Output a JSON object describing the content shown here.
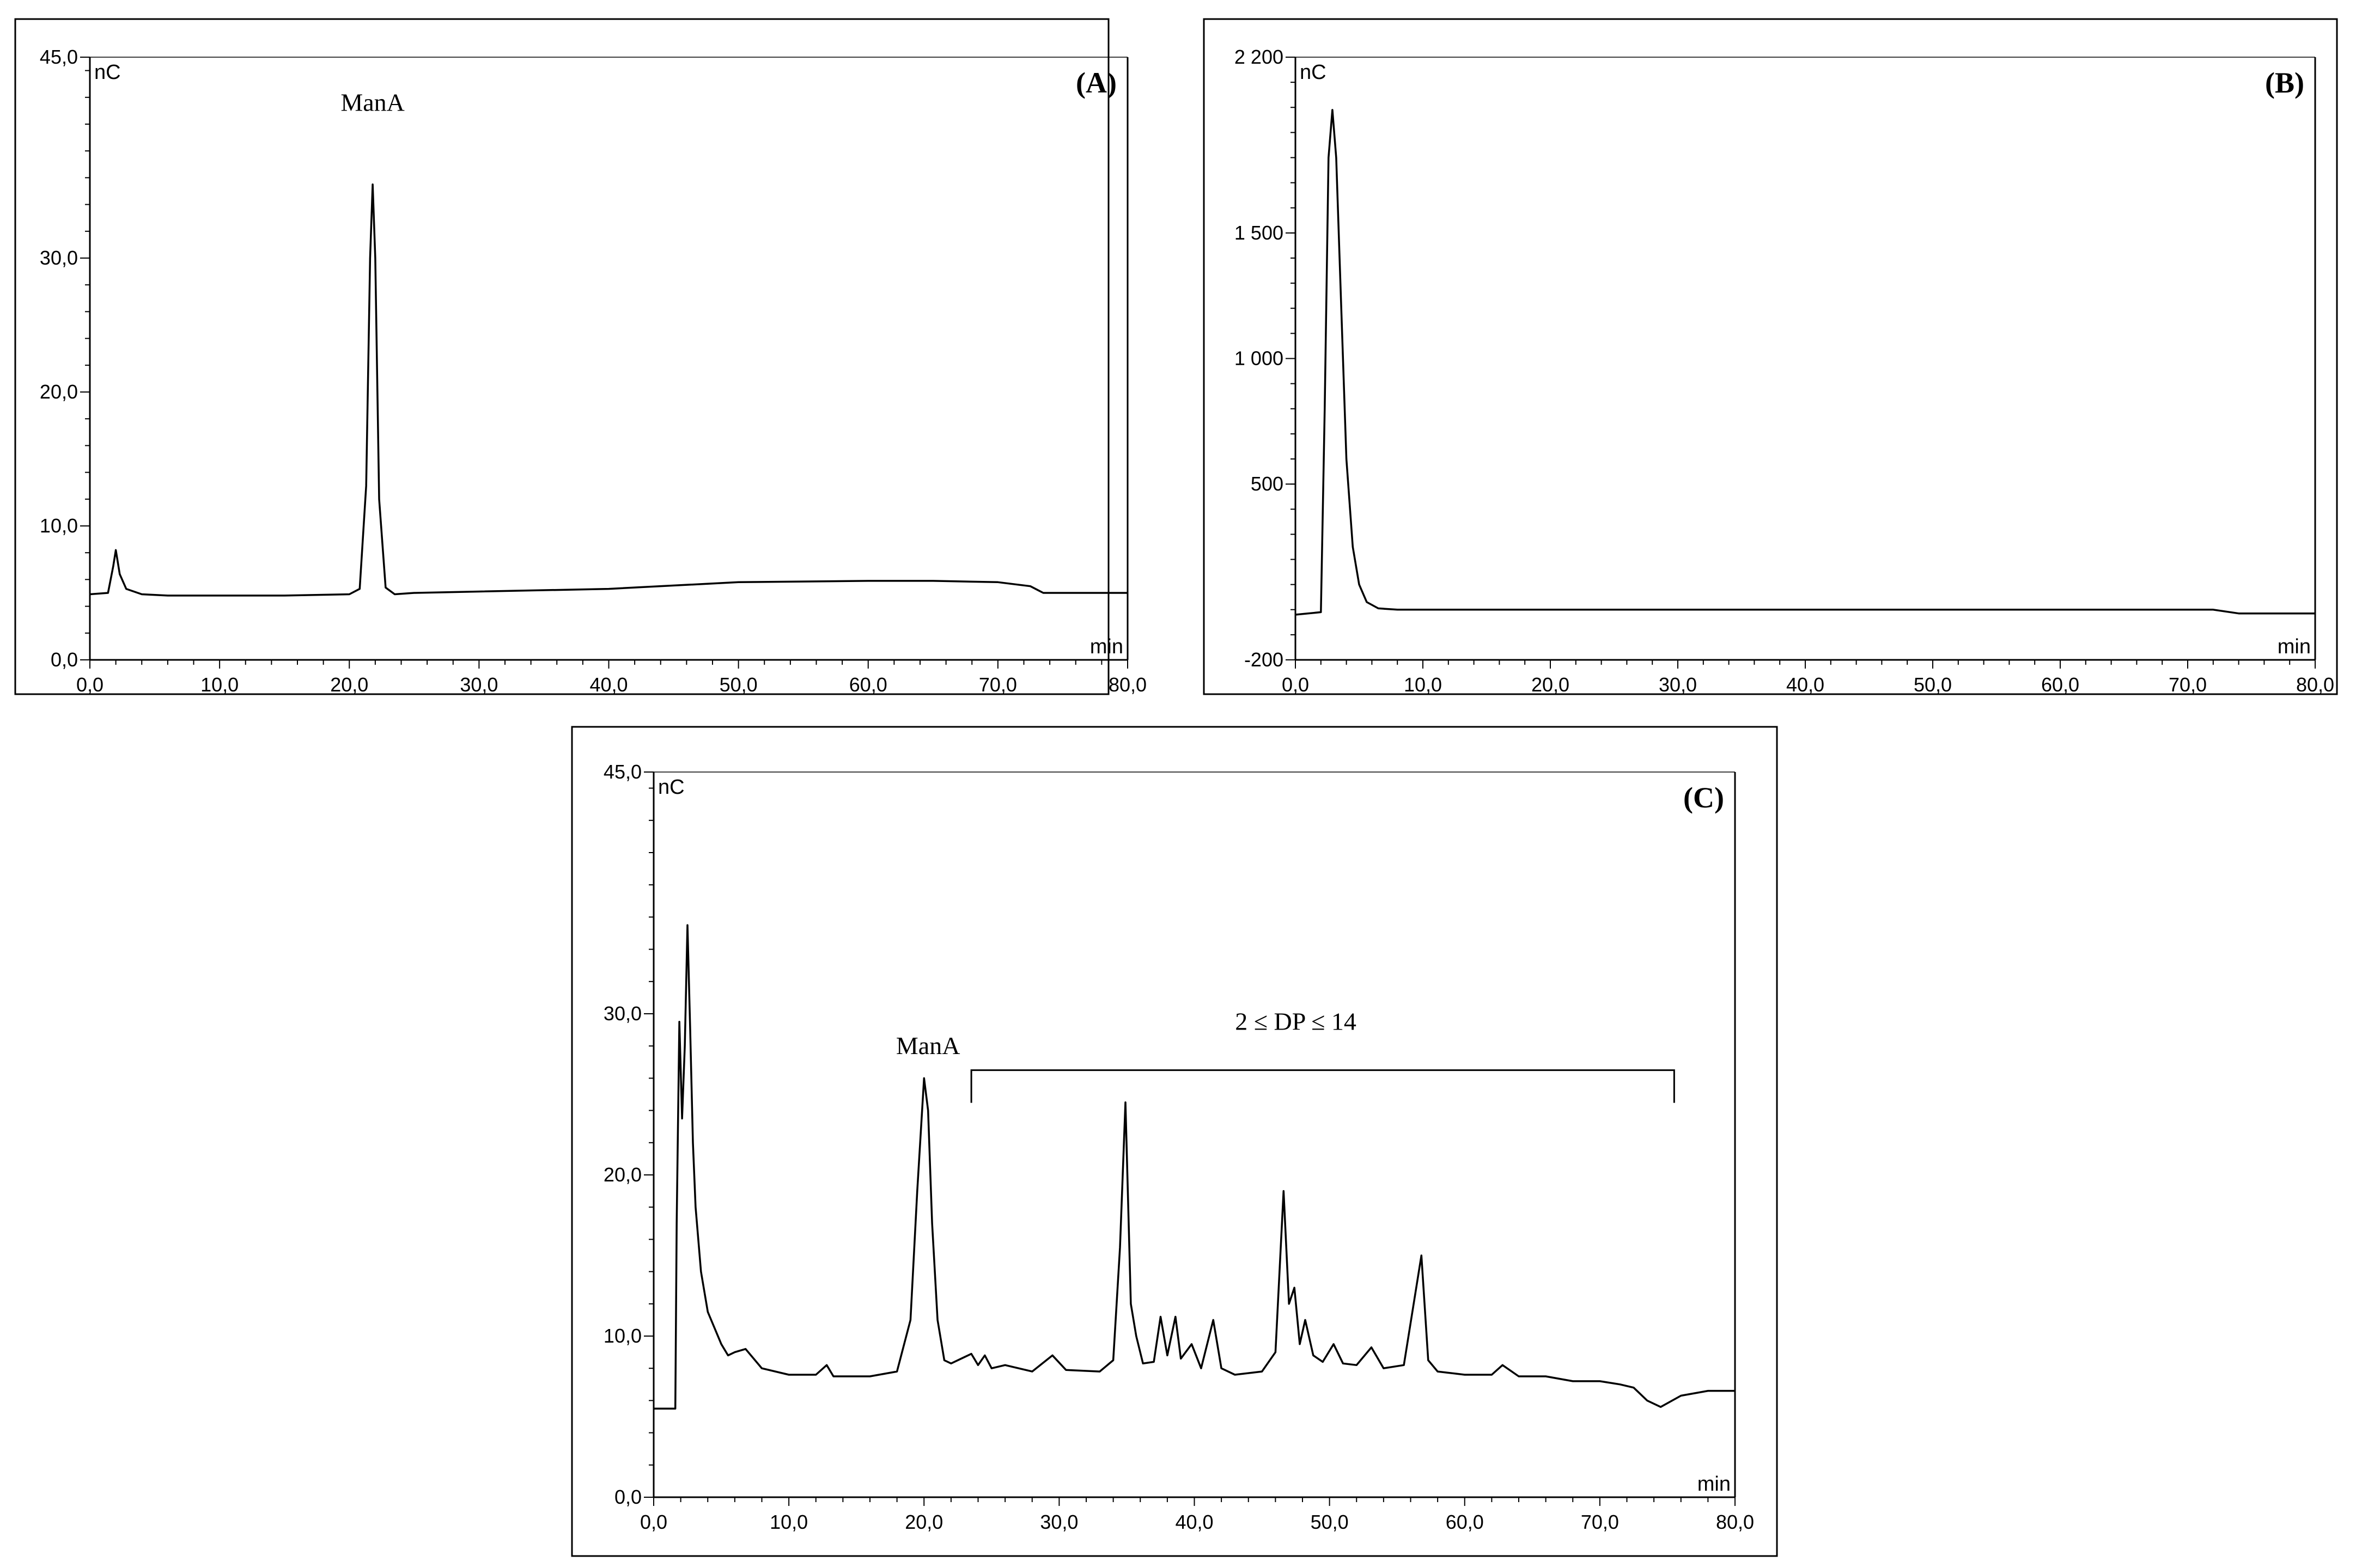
{
  "chart_data": [
    {
      "type": "line",
      "panel_label": "(A)",
      "xunit": "min",
      "yunit": "nC",
      "xlim": [
        0,
        80
      ],
      "ylim": [
        0,
        45
      ],
      "xticks": [
        0,
        10,
        20,
        30,
        40,
        50,
        60,
        70,
        80
      ],
      "xtick_labels": [
        "0,0",
        "10,0",
        "20,0",
        "30,0",
        "40,0",
        "50,0",
        "60,0",
        "70,0",
        "80,0"
      ],
      "yticks": [
        0,
        10,
        20,
        30,
        45
      ],
      "ytick_labels": [
        "0,0",
        "10,0",
        "20,0",
        "30,0",
        "45,0"
      ],
      "annotations": [
        {
          "text": "ManA",
          "x": 21.8,
          "y": 41.0
        }
      ],
      "series": [
        {
          "x": [
            0,
            1.4,
            1.8,
            2.0,
            2.3,
            2.8,
            4,
            6,
            10,
            15,
            20,
            20.8,
            21.3,
            21.6,
            21.8,
            22.0,
            22.3,
            22.8,
            23.5,
            25,
            30,
            40,
            50,
            60,
            65,
            70,
            72.5,
            73.5,
            75,
            80
          ],
          "y": [
            4.9,
            5.0,
            7.0,
            8.2,
            6.4,
            5.3,
            4.9,
            4.8,
            4.8,
            4.8,
            4.9,
            5.3,
            13.0,
            30.0,
            35.5,
            30.0,
            12.0,
            5.4,
            4.9,
            5.0,
            5.1,
            5.3,
            5.8,
            5.9,
            5.9,
            5.8,
            5.5,
            5.0,
            5.0,
            5.0
          ]
        }
      ]
    },
    {
      "type": "line",
      "panel_label": "(B)",
      "xunit": "min",
      "yunit": "nC",
      "xlim": [
        0,
        80
      ],
      "ylim": [
        -200,
        2200
      ],
      "xticks": [
        0,
        10,
        20,
        30,
        40,
        50,
        60,
        70,
        80
      ],
      "xtick_labels": [
        "0,0",
        "10,0",
        "20,0",
        "30,0",
        "40,0",
        "50,0",
        "60,0",
        "70,0",
        "80,0"
      ],
      "yticks": [
        -200,
        500,
        1000,
        1500,
        2200
      ],
      "ytick_labels": [
        "-200",
        "500",
        "1 000",
        "1 500",
        "2 200"
      ],
      "series": [
        {
          "x": [
            0,
            2.0,
            2.3,
            2.6,
            2.9,
            3.2,
            3.6,
            4.0,
            4.5,
            5.0,
            5.6,
            6.5,
            8,
            20,
            40,
            60,
            72,
            74,
            80
          ],
          "y": [
            -20,
            -10,
            800,
            1800,
            1990,
            1800,
            1200,
            600,
            250,
            100,
            30,
            5,
            0,
            0,
            0,
            0,
            0,
            -15,
            -15
          ]
        }
      ]
    },
    {
      "type": "line",
      "panel_label": "(C)",
      "xunit": "min",
      "yunit": "nC",
      "xlim": [
        0,
        80
      ],
      "ylim": [
        0,
        45
      ],
      "xticks": [
        0,
        10,
        20,
        30,
        40,
        50,
        60,
        70,
        80
      ],
      "xtick_labels": [
        "0,0",
        "10,0",
        "20,0",
        "30,0",
        "40,0",
        "50,0",
        "60,0",
        "70,0",
        "80,0"
      ],
      "yticks": [
        0,
        10,
        20,
        30,
        45
      ],
      "ytick_labels": [
        "0,0",
        "10,0",
        "20,0",
        "30,0",
        "45,0"
      ],
      "annotations": [
        {
          "text": "ManA",
          "x": 20.3,
          "y": 27.5
        },
        {
          "text": "2 ≤ DP ≤ 14",
          "x": 47.5,
          "y": 29.0,
          "bracket": [
            23.5,
            75.5,
            26.5
          ]
        }
      ],
      "series": [
        {
          "x": [
            0,
            1.6,
            1.7,
            1.9,
            2.1,
            2.3,
            2.5,
            2.7,
            2.9,
            3.1,
            3.5,
            4.0,
            4.5,
            5.0,
            5.5,
            6.0,
            6.8,
            8,
            10,
            12,
            12.8,
            13.3,
            14,
            16,
            18,
            19.0,
            19.5,
            20.0,
            20.3,
            20.6,
            21.0,
            21.5,
            22.0,
            23.0,
            23.5,
            24.0,
            24.5,
            25.0,
            26,
            28,
            29.5,
            30.5,
            33,
            34.0,
            34.5,
            34.9,
            35.3,
            35.7,
            36.2,
            37.0,
            37.5,
            38.0,
            38.6,
            39.0,
            39.8,
            40.5,
            41.4,
            42.0,
            43,
            45,
            46.0,
            46.6,
            47.0,
            47.4,
            47.8,
            48.2,
            48.8,
            49.5,
            50.3,
            51.0,
            52,
            53.1,
            54,
            55.5,
            56.8,
            57.3,
            58,
            60,
            62,
            62.8,
            64,
            66,
            68,
            70,
            71.5,
            72.5,
            73.5,
            74.5,
            76,
            78,
            80
          ],
          "y": [
            5.5,
            5.5,
            17.0,
            29.5,
            23.5,
            28.0,
            35.5,
            29.0,
            22.0,
            18.0,
            14.0,
            11.5,
            10.5,
            9.5,
            8.8,
            9.0,
            9.2,
            8.0,
            7.6,
            7.6,
            8.2,
            7.5,
            7.5,
            7.5,
            7.8,
            11.0,
            19.0,
            26.0,
            24.0,
            17.0,
            11.0,
            8.5,
            8.3,
            8.7,
            8.9,
            8.2,
            8.8,
            8.0,
            8.2,
            7.8,
            8.8,
            7.9,
            7.8,
            8.5,
            15.5,
            24.5,
            12.0,
            10.0,
            8.3,
            8.4,
            11.2,
            8.8,
            11.2,
            8.6,
            9.5,
            8.0,
            11.0,
            8.0,
            7.6,
            7.8,
            9.0,
            19.0,
            12.0,
            13.0,
            9.5,
            11.0,
            8.8,
            8.4,
            9.5,
            8.3,
            8.2,
            9.3,
            8.0,
            8.2,
            15.0,
            8.5,
            7.8,
            7.6,
            7.6,
            8.2,
            7.5,
            7.5,
            7.2,
            7.2,
            7.0,
            6.8,
            6.0,
            5.6,
            6.3,
            6.6,
            6.6
          ]
        }
      ]
    }
  ]
}
